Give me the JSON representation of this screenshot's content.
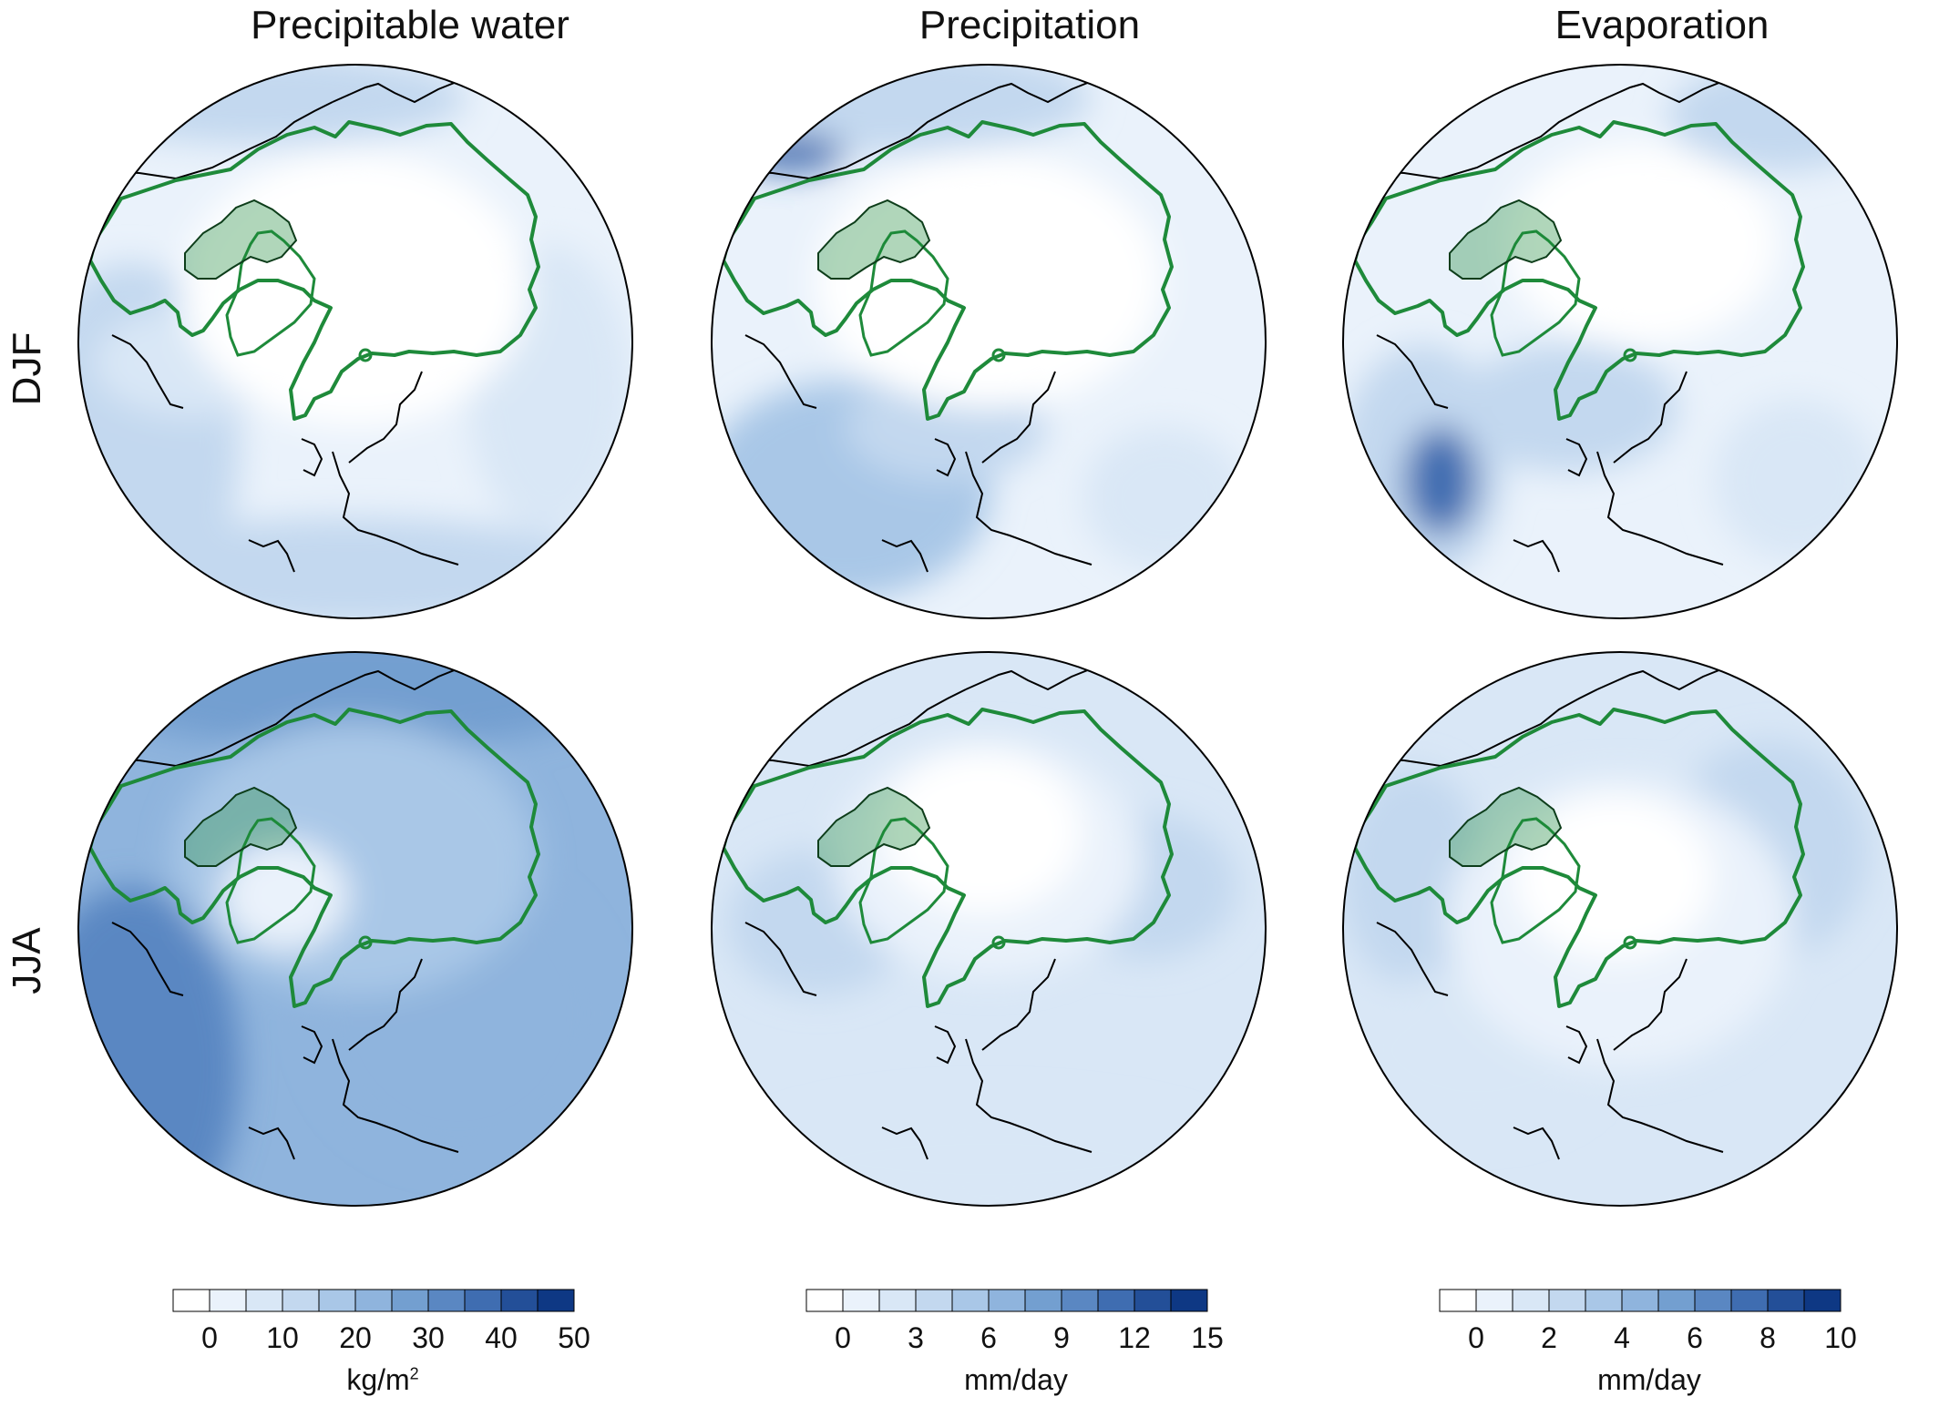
{
  "columns": [
    "Precipitable water",
    "Precipitation",
    "Evaporation"
  ],
  "rows": [
    "DJF",
    "JJA"
  ],
  "colorbars": [
    {
      "ticks": [
        "0",
        "10",
        "20",
        "30",
        "40",
        "50"
      ],
      "unit": "kg/m",
      "unit_sup": "2"
    },
    {
      "ticks": [
        "0",
        "3",
        "6",
        "9",
        "12",
        "15"
      ],
      "unit": "mm/day",
      "unit_sup": ""
    },
    {
      "ticks": [
        "0",
        "2",
        "4",
        "6",
        "8",
        "10"
      ],
      "unit": "mm/day",
      "unit_sup": ""
    }
  ],
  "palette": [
    "#ffffff",
    "#eaf2fb",
    "#d9e7f6",
    "#c3d8ef",
    "#a9c7e7",
    "#8fb4dd",
    "#739fd0",
    "#5a87c2",
    "#3f6db1",
    "#234f98",
    "#0e3884"
  ],
  "outline_colors": {
    "basin": "#1e8a3a",
    "coast": "#000000"
  }
}
